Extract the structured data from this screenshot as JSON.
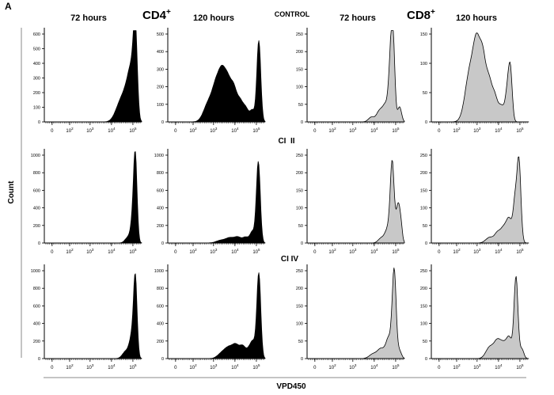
{
  "figure": {
    "panel_label": "A",
    "group_cd4": "CD4",
    "group_cd8": "CD8",
    "plus": "+",
    "y_axis_title": "Count",
    "x_axis_title": "VPD450"
  },
  "columns": [
    "72 hours",
    "120 hours",
    "72 hours",
    "120 hours"
  ],
  "rows": [
    "CONTROL",
    "CI  II",
    "CI IV"
  ],
  "x_ticks": [
    {
      "base": "0",
      "exp": ""
    },
    {
      "base": "10",
      "exp": "2"
    },
    {
      "base": "10",
      "exp": "3"
    },
    {
      "base": "10",
      "exp": "4"
    },
    {
      "base": "10",
      "exp": "5"
    }
  ],
  "chart_data": [
    {
      "type": "area",
      "cell": "CONTROL / CD4+ / 72 hours",
      "fill": "#000000",
      "ylim": [
        0,
        600
      ],
      "yticks": [
        0,
        100,
        200,
        300,
        400,
        500,
        600
      ],
      "xlabel": "VPD450",
      "ylabel": "Count",
      "peaks": [
        [
          0.76,
          0.045,
          0.12
        ],
        [
          0.81,
          0.04,
          0.16
        ],
        [
          0.86,
          0.035,
          0.27
        ],
        [
          0.9,
          0.03,
          0.4
        ],
        [
          0.935,
          0.02,
          0.9
        ]
      ]
    },
    {
      "type": "area",
      "cell": "CONTROL / CD4+ / 120 hours",
      "fill": "#000000",
      "ylim": [
        0,
        500
      ],
      "yticks": [
        0,
        100,
        200,
        300,
        400,
        500
      ],
      "xlabel": "VPD450",
      "ylabel": "Count",
      "peaks": [
        [
          0.42,
          0.05,
          0.2
        ],
        [
          0.5,
          0.04,
          0.34
        ],
        [
          0.56,
          0.035,
          0.4
        ],
        [
          0.62,
          0.035,
          0.38
        ],
        [
          0.68,
          0.03,
          0.29
        ],
        [
          0.74,
          0.03,
          0.2
        ],
        [
          0.8,
          0.03,
          0.14
        ],
        [
          0.87,
          0.025,
          0.12
        ],
        [
          0.935,
          0.02,
          0.86
        ]
      ]
    },
    {
      "type": "area",
      "cell": "CONTROL / CD8+ / 72 hours",
      "fill": "#c8c8c8",
      "ylim": [
        0,
        250
      ],
      "yticks": [
        0,
        50,
        100,
        150,
        200,
        250
      ],
      "xlabel": "VPD450",
      "ylabel": "Count",
      "peaks": [
        [
          0.66,
          0.03,
          0.05
        ],
        [
          0.74,
          0.03,
          0.1
        ],
        [
          0.81,
          0.035,
          0.19
        ],
        [
          0.86,
          0.02,
          0.6
        ],
        [
          0.885,
          0.018,
          0.72
        ],
        [
          0.95,
          0.02,
          0.16
        ]
      ]
    },
    {
      "type": "area",
      "cell": "CONTROL / CD8+ / 120 hours",
      "fill": "#c8c8c8",
      "ylim": [
        0,
        150
      ],
      "yticks": [
        0,
        50,
        100,
        150
      ],
      "xlabel": "VPD450",
      "ylabel": "Count",
      "peaks": [
        [
          0.4,
          0.05,
          0.55
        ],
        [
          0.47,
          0.035,
          0.66
        ],
        [
          0.53,
          0.03,
          0.58
        ],
        [
          0.59,
          0.03,
          0.4
        ],
        [
          0.65,
          0.03,
          0.26
        ],
        [
          0.72,
          0.03,
          0.16
        ],
        [
          0.79,
          0.025,
          0.4
        ],
        [
          0.815,
          0.018,
          0.35
        ]
      ]
    },
    {
      "type": "area",
      "cell": "CI  II / CD4+ / 72 hours",
      "fill": "#000000",
      "ylim": [
        0,
        1000
      ],
      "yticks": [
        0,
        200,
        400,
        600,
        800,
        1000
      ],
      "xlabel": "VPD450",
      "ylabel": "Count",
      "peaks": [
        [
          0.86,
          0.03,
          0.06
        ],
        [
          0.91,
          0.022,
          0.22
        ],
        [
          0.935,
          0.018,
          0.86
        ]
      ]
    },
    {
      "type": "area",
      "cell": "CI  II / CD4+ / 120 hours",
      "fill": "#000000",
      "ylim": [
        0,
        1000
      ],
      "yticks": [
        0,
        200,
        400,
        600,
        800,
        1000
      ],
      "xlabel": "VPD450",
      "ylabel": "Count",
      "peaks": [
        [
          0.55,
          0.05,
          0.03
        ],
        [
          0.64,
          0.04,
          0.05
        ],
        [
          0.72,
          0.035,
          0.06
        ],
        [
          0.8,
          0.03,
          0.06
        ],
        [
          0.87,
          0.025,
          0.12
        ],
        [
          0.93,
          0.02,
          0.86
        ]
      ]
    },
    {
      "type": "area",
      "cell": "CI  II / CD8+ / 72 hours",
      "fill": "#c8c8c8",
      "ylim": [
        0,
        250
      ],
      "yticks": [
        0,
        50,
        100,
        150,
        200,
        250
      ],
      "xlabel": "VPD450",
      "ylabel": "Count",
      "peaks": [
        [
          0.76,
          0.03,
          0.05
        ],
        [
          0.83,
          0.03,
          0.15
        ],
        [
          0.875,
          0.02,
          0.83
        ],
        [
          0.935,
          0.02,
          0.4
        ],
        [
          0.965,
          0.015,
          0.14
        ]
      ]
    },
    {
      "type": "area",
      "cell": "CI  II / CD8+ / 120 hours",
      "fill": "#c8c8c8",
      "ylim": [
        0,
        250
      ],
      "yticks": [
        0,
        50,
        100,
        150,
        200,
        250
      ],
      "xlabel": "VPD450",
      "ylabel": "Count",
      "peaks": [
        [
          0.6,
          0.04,
          0.06
        ],
        [
          0.68,
          0.03,
          0.1
        ],
        [
          0.74,
          0.03,
          0.14
        ],
        [
          0.8,
          0.03,
          0.25
        ],
        [
          0.86,
          0.02,
          0.4
        ],
        [
          0.9,
          0.02,
          0.86
        ]
      ]
    },
    {
      "type": "area",
      "cell": "CI IV / CD4+ / 72 hours",
      "fill": "#000000",
      "ylim": [
        0,
        1000
      ],
      "yticks": [
        0,
        200,
        400,
        600,
        800,
        1000
      ],
      "xlabel": "VPD450",
      "ylabel": "Count",
      "peaks": [
        [
          0.84,
          0.035,
          0.08
        ],
        [
          0.9,
          0.025,
          0.22
        ],
        [
          0.935,
          0.018,
          0.82
        ]
      ]
    },
    {
      "type": "area",
      "cell": "CI IV / CD4+ / 120 hours",
      "fill": "#000000",
      "ylim": [
        0,
        1000
      ],
      "yticks": [
        0,
        200,
        400,
        600,
        800,
        1000
      ],
      "xlabel": "VPD450",
      "ylabel": "Count",
      "peaks": [
        [
          0.56,
          0.045,
          0.06
        ],
        [
          0.63,
          0.04,
          0.1
        ],
        [
          0.7,
          0.035,
          0.13
        ],
        [
          0.77,
          0.03,
          0.12
        ],
        [
          0.84,
          0.03,
          0.1
        ],
        [
          0.88,
          0.025,
          0.14
        ],
        [
          0.935,
          0.02,
          0.9
        ]
      ]
    },
    {
      "type": "area",
      "cell": "CI IV / CD8+ / 72 hours",
      "fill": "#c8c8c8",
      "ylim": [
        0,
        250
      ],
      "yticks": [
        0,
        50,
        100,
        150,
        200,
        250
      ],
      "xlabel": "VPD450",
      "ylabel": "Count",
      "peaks": [
        [
          0.68,
          0.04,
          0.05
        ],
        [
          0.76,
          0.035,
          0.1
        ],
        [
          0.84,
          0.03,
          0.22
        ],
        [
          0.895,
          0.02,
          0.92
        ],
        [
          0.95,
          0.02,
          0.08
        ]
      ]
    },
    {
      "type": "area",
      "cell": "CI IV / CD8+ / 120 hours",
      "fill": "#c8c8c8",
      "ylim": [
        0,
        250
      ],
      "yticks": [
        0,
        50,
        100,
        150,
        200,
        250
      ],
      "xlabel": "VPD450",
      "ylabel": "Count",
      "peaks": [
        [
          0.6,
          0.04,
          0.12
        ],
        [
          0.68,
          0.035,
          0.18
        ],
        [
          0.74,
          0.03,
          0.12
        ],
        [
          0.8,
          0.03,
          0.22
        ],
        [
          0.87,
          0.02,
          0.86
        ],
        [
          0.93,
          0.02,
          0.1
        ]
      ]
    }
  ]
}
